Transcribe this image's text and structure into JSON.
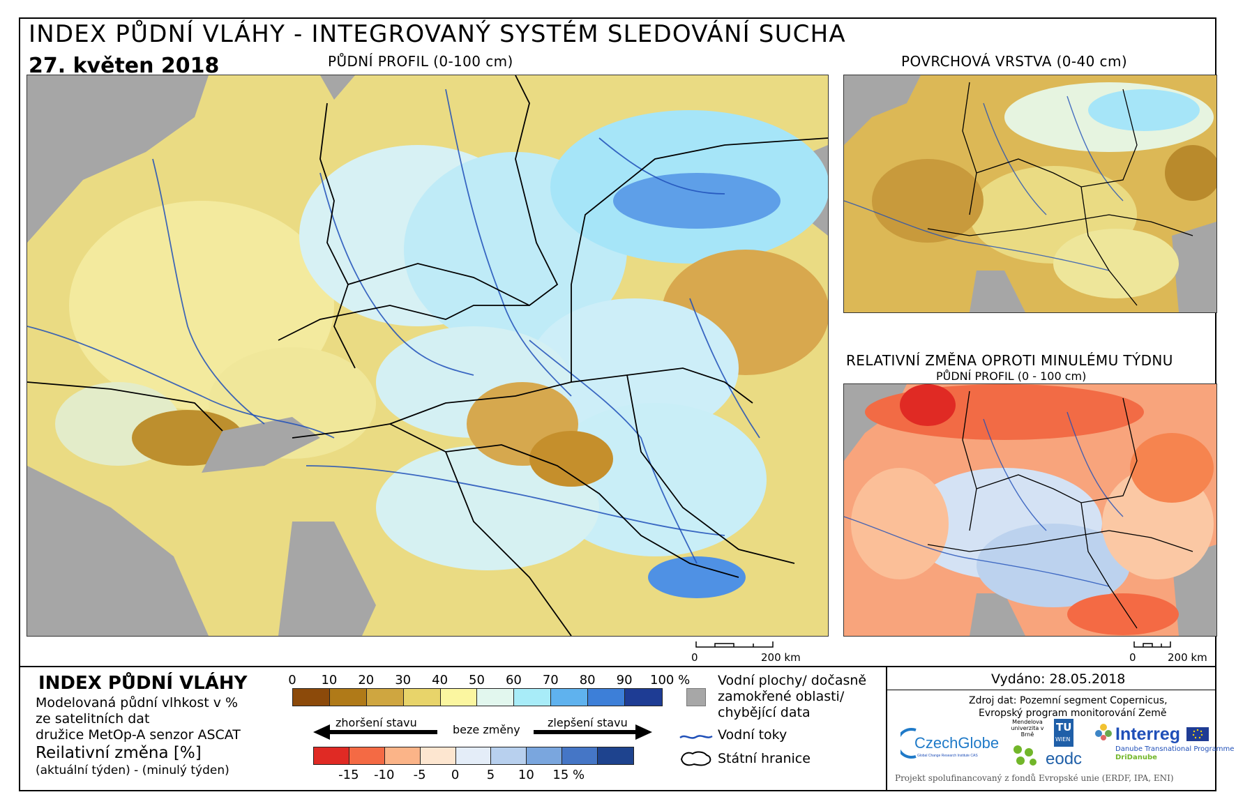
{
  "header": {
    "title": "INDEX PŮDNÍ VLÁHY - INTEGROVANÝ SYSTÉM SLEDOVÁNÍ SUCHA",
    "date": "27. květen 2018"
  },
  "maps": {
    "main_caption": "PŮDNÍ PROFIL (0-100 cm)",
    "top_right_caption": "POVRCHOVÁ VRSTVA (0-40 cm)",
    "bottom_right_caption": "RELATIVNÍ ZMĚNA OPROTI MINULÉMU TÝDNU",
    "bottom_right_subcaption": "PŮDNÍ PROFIL (0 - 100 cm)",
    "scalebar_main": {
      "zero": "0",
      "end": "200 km"
    },
    "scalebar_small": {
      "zero": "0",
      "end": "200 km"
    }
  },
  "legend": {
    "heading": "INDEX PŮDNÍ VLÁHY",
    "desc_line1": "Modelovaná půdní vlhkost v %",
    "desc_line2": "ze satelitních dat",
    "desc_line3": "družice MetOp-A senzor ASCAT",
    "change_heading": "Reilativní změna [%]",
    "change_desc": "(aktuální týden) - (minulý týden)",
    "index_ticks": [
      "0",
      "10",
      "20",
      "30",
      "40",
      "50",
      "60",
      "70",
      "80",
      "90",
      "100 %"
    ],
    "index_colors": [
      "#8c4a0a",
      "#b07a18",
      "#cfa640",
      "#e8d46a",
      "#fbf6a0",
      "#e2f7ee",
      "#a8ecf8",
      "#5fb2ee",
      "#3d7fd8",
      "#1e3c94"
    ],
    "change_ticks": [
      "-15",
      "-10",
      "-5",
      "0",
      "5",
      "10",
      "15 %"
    ],
    "change_colors": [
      "#e02a24",
      "#f46a44",
      "#fbb488",
      "#fde6d0",
      "#e4edf8",
      "#b8d0ee",
      "#7aa6de",
      "#4576c6",
      "#1e438e"
    ],
    "arrow_worse": "zhoršení stavu",
    "arrow_none": "beze změny",
    "arrow_better": "zlepšení stavu"
  },
  "symbols": {
    "gray_label_1": "Vodní plochy/ dočasně",
    "gray_label_2": "zamokřené oblasti/",
    "gray_label_3": "chybějící data",
    "rivers_label": "Vodní toky",
    "borders_label": "Státní hranice",
    "gray_color": "#a7a7a7",
    "river_color": "#1f4fb8"
  },
  "info": {
    "issued": "Vydáno: 28.05.2018",
    "source_line1": "Zdroj dat: Pozemní segment Copernicus,",
    "source_line2": "Evropský program monitorování Země",
    "funding": "Projekt spolufinancovaný z fondů Evropské unie (ERDF, IPA, ENI)",
    "logo_czechglobe": "CzechGlobe",
    "logo_czechglobe_sub": "Global Change Research Institute CAS",
    "logo_mendel": "Mendelova univerzita v Brně",
    "logo_tu": "TU",
    "logo_tu_sub": "WIEN",
    "logo_eodc": "eodc",
    "logo_interreg": "Interreg",
    "logo_interreg_sub1": "Danube Transnational Programme",
    "logo_interreg_sub2": "DriDanube"
  }
}
